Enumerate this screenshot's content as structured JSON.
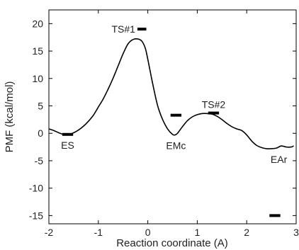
{
  "chart_data": {
    "type": "line",
    "xlabel": "Reaction coordinate (A)",
    "ylabel": "PMF (kcal/mol)",
    "xlim": [
      -2,
      3
    ],
    "ylim": [
      -16.5,
      22.5
    ],
    "grid": false,
    "legend": "none",
    "x_ticks": [
      -2,
      -1,
      0,
      1,
      2,
      3
    ],
    "y_ticks": [
      -15,
      -10,
      -5,
      0,
      5,
      10,
      15,
      20
    ],
    "line_color": "#000000",
    "series": [
      {
        "x": [
          -2.0,
          -1.9,
          -1.8,
          -1.7,
          -1.6,
          -1.5,
          -1.4,
          -1.3,
          -1.2,
          -1.1,
          -1.0,
          -0.9,
          -0.8,
          -0.7,
          -0.6,
          -0.5,
          -0.4,
          -0.3,
          -0.2,
          -0.12,
          -0.05,
          0.0,
          0.1,
          0.2,
          0.3,
          0.4,
          0.5,
          0.55,
          0.6,
          0.7,
          0.8,
          0.9,
          1.0,
          1.1,
          1.2,
          1.3,
          1.4,
          1.5,
          1.6,
          1.7,
          1.8,
          1.9,
          2.0,
          2.1,
          2.2,
          2.3,
          2.4,
          2.5,
          2.6,
          2.7,
          2.8,
          2.9,
          2.95
        ],
        "y": [
          0.8,
          0.5,
          0.1,
          -0.2,
          -0.2,
          0.1,
          0.6,
          1.3,
          2.2,
          3.3,
          4.8,
          6.3,
          8.1,
          10.1,
          12.3,
          14.5,
          16.3,
          17.1,
          17.2,
          16.8,
          15.5,
          13.5,
          9.0,
          5.0,
          2.5,
          0.8,
          -0.2,
          -0.3,
          0.0,
          1.2,
          2.3,
          3.0,
          3.4,
          3.6,
          3.6,
          3.5,
          3.1,
          2.5,
          1.8,
          1.2,
          0.8,
          0.5,
          -0.3,
          -1.4,
          -2.2,
          -2.6,
          -2.8,
          -2.8,
          -2.7,
          -2.3,
          -2.5,
          -2.5,
          -2.3
        ]
      }
    ],
    "markers": [
      {
        "label": "ES",
        "x": -1.62,
        "y": -0.2,
        "half_width": 0.11,
        "label_pos": "below"
      },
      {
        "label": "TS#1",
        "x": -0.12,
        "y": 19.0,
        "half_width": 0.09,
        "label_pos": "left"
      },
      {
        "label": "",
        "x": 0.57,
        "y": 3.3,
        "half_width": 0.11,
        "label_pos": "none"
      },
      {
        "label": "EMc",
        "x": 0.57,
        "y": -0.3,
        "half_width": 0.0,
        "label_pos": "below"
      },
      {
        "label": "TS#2",
        "x": 1.33,
        "y": 3.7,
        "half_width": 0.11,
        "label_pos": "above"
      },
      {
        "label": "EAr",
        "x": 2.65,
        "y": -2.8,
        "half_width": 0.0,
        "label_pos": "below"
      },
      {
        "label": "",
        "x": 2.57,
        "y": -15.0,
        "half_width": 0.11,
        "label_pos": "none"
      }
    ]
  }
}
